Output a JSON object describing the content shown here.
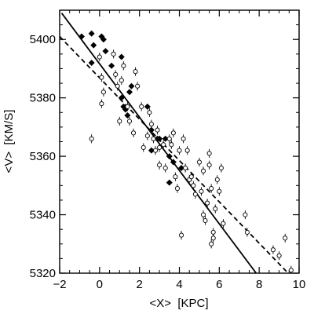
{
  "chart_data": {
    "type": "scatter",
    "xlabel": "<X>  [KPC]",
    "ylabel": "<V>  [KM/S]",
    "xlim": [
      -2,
      10
    ],
    "ylim": [
      5320,
      5410
    ],
    "xticks": [
      -2,
      0,
      2,
      4,
      6,
      8,
      10
    ],
    "yticks": [
      5320,
      5340,
      5360,
      5380,
      5400
    ],
    "xtick_labels": [
      "−2",
      "0",
      "2",
      "4",
      "6",
      "8",
      "10"
    ],
    "ytick_labels": [
      "5320",
      "5340",
      "5360",
      "5380",
      "5400"
    ],
    "grid": false,
    "series": [
      {
        "marker": "filled-diamond",
        "points": [
          [
            -0.9,
            5401
          ],
          [
            -0.4,
            5402
          ],
          [
            0.1,
            5401
          ],
          [
            0.2,
            5400
          ],
          [
            -0.3,
            5398
          ],
          [
            -0.4,
            5392
          ],
          [
            0.3,
            5396
          ],
          [
            0.6,
            5391
          ],
          [
            1.1,
            5394
          ],
          [
            1.6,
            5384
          ],
          [
            1.5,
            5382
          ],
          [
            1.1,
            5380
          ],
          [
            1.2,
            5377
          ],
          [
            1.3,
            5376
          ],
          [
            1.4,
            5374
          ],
          [
            2.4,
            5377
          ],
          [
            2.6,
            5369
          ],
          [
            2.9,
            5366
          ],
          [
            3.0,
            5366
          ],
          [
            3.3,
            5366
          ],
          [
            2.6,
            5362
          ],
          [
            3.5,
            5360
          ],
          [
            3.7,
            5358
          ],
          [
            4.1,
            5356
          ],
          [
            3.5,
            5351
          ]
        ]
      },
      {
        "marker": "open-circle-errorbar",
        "points": [
          [
            -0.4,
            5366,
            1.5
          ],
          [
            0.0,
            5394,
            1.5
          ],
          [
            0.1,
            5387,
            1.5
          ],
          [
            0.2,
            5382,
            1.5
          ],
          [
            0.1,
            5378,
            1.5
          ],
          [
            0.7,
            5395,
            1.5
          ],
          [
            0.8,
            5388,
            1.5
          ],
          [
            0.9,
            5384,
            1.5
          ],
          [
            1.0,
            5372,
            1.5
          ],
          [
            1.1,
            5386,
            1.5
          ],
          [
            1.2,
            5391,
            1.5
          ],
          [
            1.4,
            5377,
            1.5
          ],
          [
            1.5,
            5372,
            1.5
          ],
          [
            1.7,
            5368,
            1.5
          ],
          [
            1.8,
            5389,
            1.5
          ],
          [
            1.9,
            5384,
            1.5
          ],
          [
            2.1,
            5377,
            1.5
          ],
          [
            2.2,
            5363,
            1.5
          ],
          [
            2.4,
            5367,
            1.5
          ],
          [
            2.5,
            5375,
            1.5
          ],
          [
            2.6,
            5371,
            1.5
          ],
          [
            2.7,
            5366,
            1.5
          ],
          [
            2.8,
            5362,
            1.5
          ],
          [
            2.9,
            5369,
            1.5
          ],
          [
            3.0,
            5363,
            1.5
          ],
          [
            3.0,
            5357,
            1.5
          ],
          [
            3.2,
            5364,
            1.5
          ],
          [
            3.3,
            5356,
            1.5
          ],
          [
            3.5,
            5366,
            1.5
          ],
          [
            3.6,
            5364,
            1.5
          ],
          [
            3.7,
            5368,
            1.5
          ],
          [
            3.8,
            5353,
            1.5
          ],
          [
            3.9,
            5349,
            1.5
          ],
          [
            4.0,
            5362,
            1.5
          ],
          [
            4.1,
            5333,
            1.5
          ],
          [
            4.2,
            5366,
            1.5
          ],
          [
            4.3,
            5356,
            1.5
          ],
          [
            4.4,
            5362,
            1.5
          ],
          [
            4.5,
            5352,
            1.5
          ],
          [
            4.6,
            5353,
            1.5
          ],
          [
            4.7,
            5350,
            1.5
          ],
          [
            4.8,
            5347,
            1.5
          ],
          [
            5.0,
            5358,
            1.5
          ],
          [
            5.1,
            5348,
            1.5
          ],
          [
            5.2,
            5340,
            1.5
          ],
          [
            5.2,
            5355,
            1.5
          ],
          [
            5.3,
            5338,
            1.5
          ],
          [
            5.4,
            5344,
            1.5
          ],
          [
            5.5,
            5361,
            1.5
          ],
          [
            5.5,
            5357,
            1.5
          ],
          [
            5.6,
            5349,
            1.5
          ],
          [
            5.6,
            5330,
            1.5
          ],
          [
            5.7,
            5334,
            1.5
          ],
          [
            5.7,
            5332,
            1.5
          ],
          [
            5.8,
            5342,
            1.5
          ],
          [
            5.9,
            5352,
            1.5
          ],
          [
            6.0,
            5348,
            1.5
          ],
          [
            6.1,
            5356,
            1.5
          ],
          [
            6.2,
            5337,
            1.5
          ],
          [
            7.3,
            5340,
            1.5
          ],
          [
            7.4,
            5334,
            1.5
          ],
          [
            8.7,
            5328,
            1.5
          ],
          [
            9.0,
            5326,
            1.5
          ],
          [
            9.3,
            5332,
            1.5
          ],
          [
            9.6,
            5321,
            1.5
          ]
        ]
      }
    ],
    "lines": [
      {
        "style": "solid",
        "points": [
          [
            -1.9,
            5409
          ],
          [
            7.85,
            5320
          ]
        ]
      },
      {
        "style": "dashed",
        "points": [
          [
            -2.0,
            5401
          ],
          [
            9.45,
            5320
          ]
        ]
      }
    ]
  }
}
